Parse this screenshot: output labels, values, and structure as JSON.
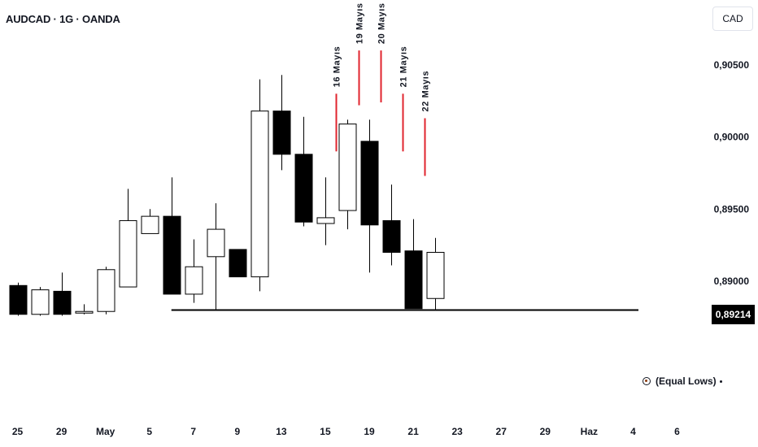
{
  "header": {
    "symbol_title": "AUDCAD · 1G · OANDA",
    "currency": "CAD"
  },
  "price_badge": "0,89214",
  "annotation": {
    "label": "(Equal Lows)",
    "icon": "target-icon"
  },
  "colors": {
    "bull_fill": "#ffffff",
    "bear_fill": "#000000",
    "wick": "#000000",
    "marker": "#e0242e",
    "equal_lows_line": "#000000"
  },
  "chart_data": {
    "type": "candlestick",
    "symbol": "AUDCAD",
    "interval": "1G",
    "source": "OANDA",
    "y_ticks": [
      {
        "value": 0.905,
        "label": "0,90500"
      },
      {
        "value": 0.9,
        "label": "0,90000"
      },
      {
        "value": 0.895,
        "label": "0,89500"
      },
      {
        "value": 0.89,
        "label": "0,89000"
      }
    ],
    "y_range": [
      0.8785,
      0.9095
    ],
    "x_range": [
      -0.5,
      30.5
    ],
    "x_ticks": [
      {
        "i": 0,
        "label": "25"
      },
      {
        "i": 2,
        "label": "29"
      },
      {
        "i": 4,
        "label": "May"
      },
      {
        "i": 6,
        "label": "5"
      },
      {
        "i": 8,
        "label": "7"
      },
      {
        "i": 10,
        "label": "9"
      },
      {
        "i": 12,
        "label": "13"
      },
      {
        "i": 14,
        "label": "15"
      },
      {
        "i": 16,
        "label": "19"
      },
      {
        "i": 18,
        "label": "21"
      },
      {
        "i": 20,
        "label": "23"
      },
      {
        "i": 22,
        "label": "27"
      },
      {
        "i": 24,
        "label": "29"
      },
      {
        "i": 26,
        "label": "Haz"
      },
      {
        "i": 28,
        "label": "4"
      },
      {
        "i": 30,
        "label": "6"
      }
    ],
    "candles": [
      {
        "i": 0,
        "o": 0.8897,
        "h": 0.8899,
        "l": 0.8876,
        "c": 0.8877
      },
      {
        "i": 1,
        "o": 0.8877,
        "h": 0.8896,
        "l": 0.8876,
        "c": 0.8894
      },
      {
        "i": 2,
        "o": 0.8893,
        "h": 0.8906,
        "l": 0.8876,
        "c": 0.8877
      },
      {
        "i": 3,
        "o": 0.8879,
        "h": 0.8884,
        "l": 0.8877,
        "c": 0.8879
      },
      {
        "i": 4,
        "o": 0.8879,
        "h": 0.891,
        "l": 0.8877,
        "c": 0.8908
      },
      {
        "i": 5,
        "o": 0.8896,
        "h": 0.8964,
        "l": 0.8896,
        "c": 0.8942
      },
      {
        "i": 6,
        "o": 0.8933,
        "h": 0.895,
        "l": 0.8933,
        "c": 0.8945
      },
      {
        "i": 7,
        "o": 0.8945,
        "h": 0.8972,
        "l": 0.8891,
        "c": 0.8891
      },
      {
        "i": 8,
        "o": 0.8891,
        "h": 0.8929,
        "l": 0.8885,
        "c": 0.891
      },
      {
        "i": 9,
        "o": 0.8917,
        "h": 0.8954,
        "l": 0.888,
        "c": 0.8936
      },
      {
        "i": 10,
        "o": 0.8922,
        "h": 0.8922,
        "l": 0.8903,
        "c": 0.8903
      },
      {
        "i": 11,
        "o": 0.8903,
        "h": 0.904,
        "l": 0.8893,
        "c": 0.9018
      },
      {
        "i": 12,
        "o": 0.9018,
        "h": 0.9043,
        "l": 0.8977,
        "c": 0.8988
      },
      {
        "i": 13,
        "o": 0.8988,
        "h": 0.9014,
        "l": 0.8938,
        "c": 0.8941
      },
      {
        "i": 14,
        "o": 0.894,
        "h": 0.8972,
        "l": 0.8925,
        "c": 0.8944
      },
      {
        "i": 15,
        "o": 0.8949,
        "h": 0.9012,
        "l": 0.8936,
        "c": 0.9009
      },
      {
        "i": 16,
        "o": 0.8997,
        "h": 0.9012,
        "l": 0.8906,
        "c": 0.8939
      },
      {
        "i": 17,
        "o": 0.8942,
        "h": 0.8967,
        "l": 0.8911,
        "c": 0.892
      },
      {
        "i": 18,
        "o": 0.8921,
        "h": 0.8943,
        "l": 0.8881,
        "c": 0.8881
      },
      {
        "i": 19,
        "o": 0.8888,
        "h": 0.893,
        "l": 0.888,
        "c": 0.892
      }
    ],
    "annotations": [
      {
        "i": 14.5,
        "label": "16 Mayıs",
        "top": 0.903,
        "bottom": 0.899
      },
      {
        "i": 15.5,
        "label": "19 Mayıs",
        "top": 0.906,
        "bottom": 0.9022
      },
      {
        "i": 16.5,
        "label": "20 Mayıs",
        "top": 0.906,
        "bottom": 0.9024
      },
      {
        "i": 17.5,
        "label": "21 Mayıs",
        "top": 0.903,
        "bottom": 0.899
      },
      {
        "i": 18.5,
        "label": "22 Mayıs",
        "top": 0.9013,
        "bottom": 0.8973
      }
    ],
    "equal_lows": {
      "value": 0.888,
      "from_i": 7,
      "label": "(Equal Lows)"
    },
    "last_price": {
      "value": 0.89214,
      "label": "0,89214"
    }
  }
}
